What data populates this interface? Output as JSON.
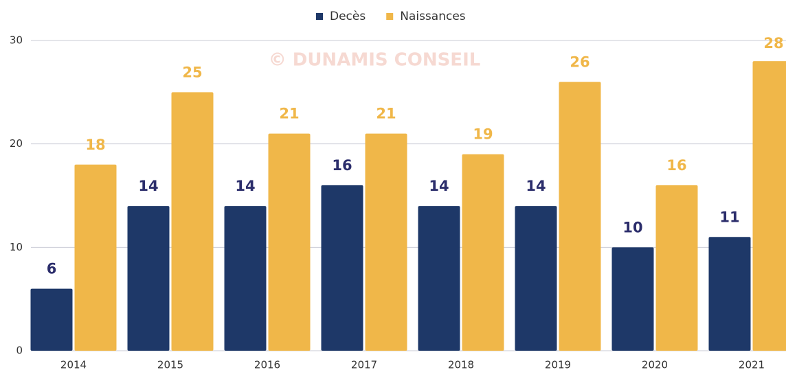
{
  "chart_data": {
    "type": "bar",
    "annotation": "© DUNAMIS CONSEIL",
    "categories": [
      "2014",
      "2015",
      "2016",
      "2017",
      "2018",
      "2019",
      "2020",
      "2021"
    ],
    "series": [
      {
        "name": "Decès",
        "color": "#1e3868",
        "label_color": "#2b2d6b",
        "values": [
          6,
          14,
          14,
          16,
          14,
          14,
          10,
          11
        ]
      },
      {
        "name": "Naissances",
        "color": "#f0b749",
        "label_color": "#f0b749",
        "values": [
          18,
          25,
          21,
          21,
          19,
          26,
          16,
          28
        ]
      }
    ],
    "ylim": [
      0,
      30
    ],
    "yticks": [
      0,
      10,
      20,
      30
    ],
    "grid": true,
    "legend": "top"
  }
}
